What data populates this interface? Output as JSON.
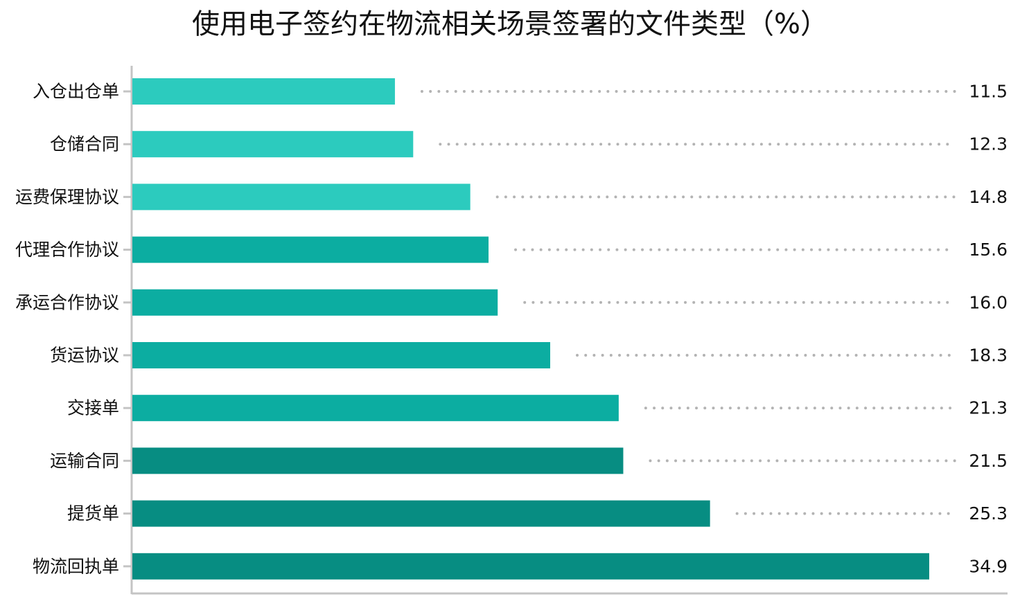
{
  "chart_data": {
    "type": "bar",
    "orientation": "horizontal",
    "title": "使用电子签约在物流相关场景签署的文件类型（%）",
    "categories": [
      "入仓出仓单",
      "仓储合同",
      "运费保理协议",
      "代理合作协议",
      "承运合作协议",
      "货运协议",
      "交接单",
      "运输合同",
      "提货单",
      "物流回执单"
    ],
    "values": [
      11.5,
      12.3,
      14.8,
      15.6,
      16.0,
      18.3,
      21.3,
      21.5,
      25.3,
      34.9
    ],
    "value_labels": [
      "11.5",
      "12.3",
      "14.8",
      "15.6",
      "16.0",
      "18.3",
      "21.3",
      "21.5",
      "25.3",
      "34.9"
    ],
    "bar_colors": [
      "#2ccbbe",
      "#2ccbbe",
      "#2ccbbe",
      "#0cada1",
      "#0cada1",
      "#0cada1",
      "#0cada1",
      "#078d82",
      "#078d82",
      "#078d82"
    ],
    "leader_color": "#b3b3b3",
    "axis_color": "#c4c4c4",
    "xlim": [
      0,
      35
    ],
    "grid": false,
    "legend": "none"
  }
}
